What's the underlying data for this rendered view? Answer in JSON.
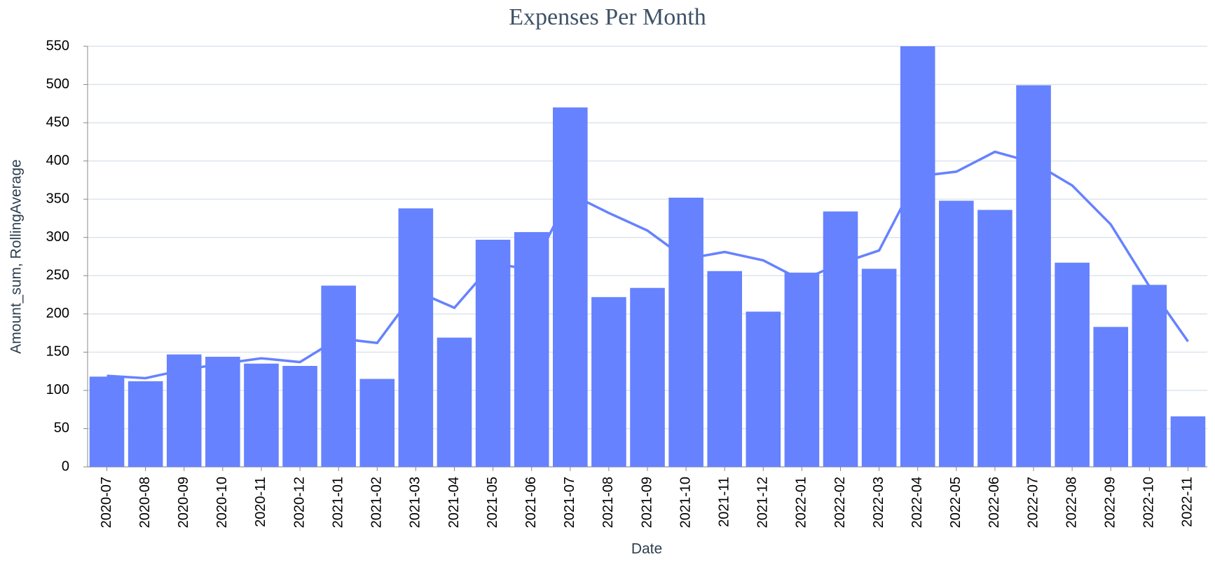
{
  "chart_data": {
    "type": "combo",
    "title": "Expenses Per Month",
    "x_label": "Date",
    "y_label": "Amount_sum, RollingAverage",
    "categories": [
      "2020-07",
      "2020-08",
      "2020-09",
      "2020-10",
      "2020-11",
      "2020-12",
      "2021-01",
      "2021-02",
      "2021-03",
      "2021-04",
      "2021-05",
      "2021-06",
      "2021-07",
      "2021-08",
      "2021-09",
      "2021-10",
      "2021-11",
      "2021-12",
      "2022-01",
      "2022-02",
      "2022-03",
      "2022-04",
      "2022-05",
      "2022-06",
      "2022-07",
      "2022-08",
      "2022-09",
      "2022-10",
      "2022-11"
    ],
    "series": [
      {
        "type": "bar",
        "color": "#6682ff",
        "values": [
          118,
          112,
          147,
          144,
          135,
          132,
          237,
          115,
          338,
          169,
          297,
          307,
          470,
          222,
          234,
          352,
          256,
          203,
          254,
          334,
          259,
          550,
          348,
          336,
          499,
          267,
          183,
          238,
          66
        ]
      },
      {
        "type": "line",
        "color": "#6682ff",
        "values": [
          119,
          116,
          127,
          135,
          142,
          137,
          168,
          162,
          230,
          208,
          266,
          258,
          357,
          332,
          309,
          272,
          281,
          270,
          244,
          266,
          283,
          380,
          386,
          412,
          398,
          368,
          317,
          236,
          164
        ]
      }
    ],
    "ylim": [
      0,
      550
    ],
    "yticks": [
      0,
      50,
      100,
      150,
      200,
      250,
      300,
      350,
      400,
      450,
      500,
      550
    ],
    "grid": true
  }
}
